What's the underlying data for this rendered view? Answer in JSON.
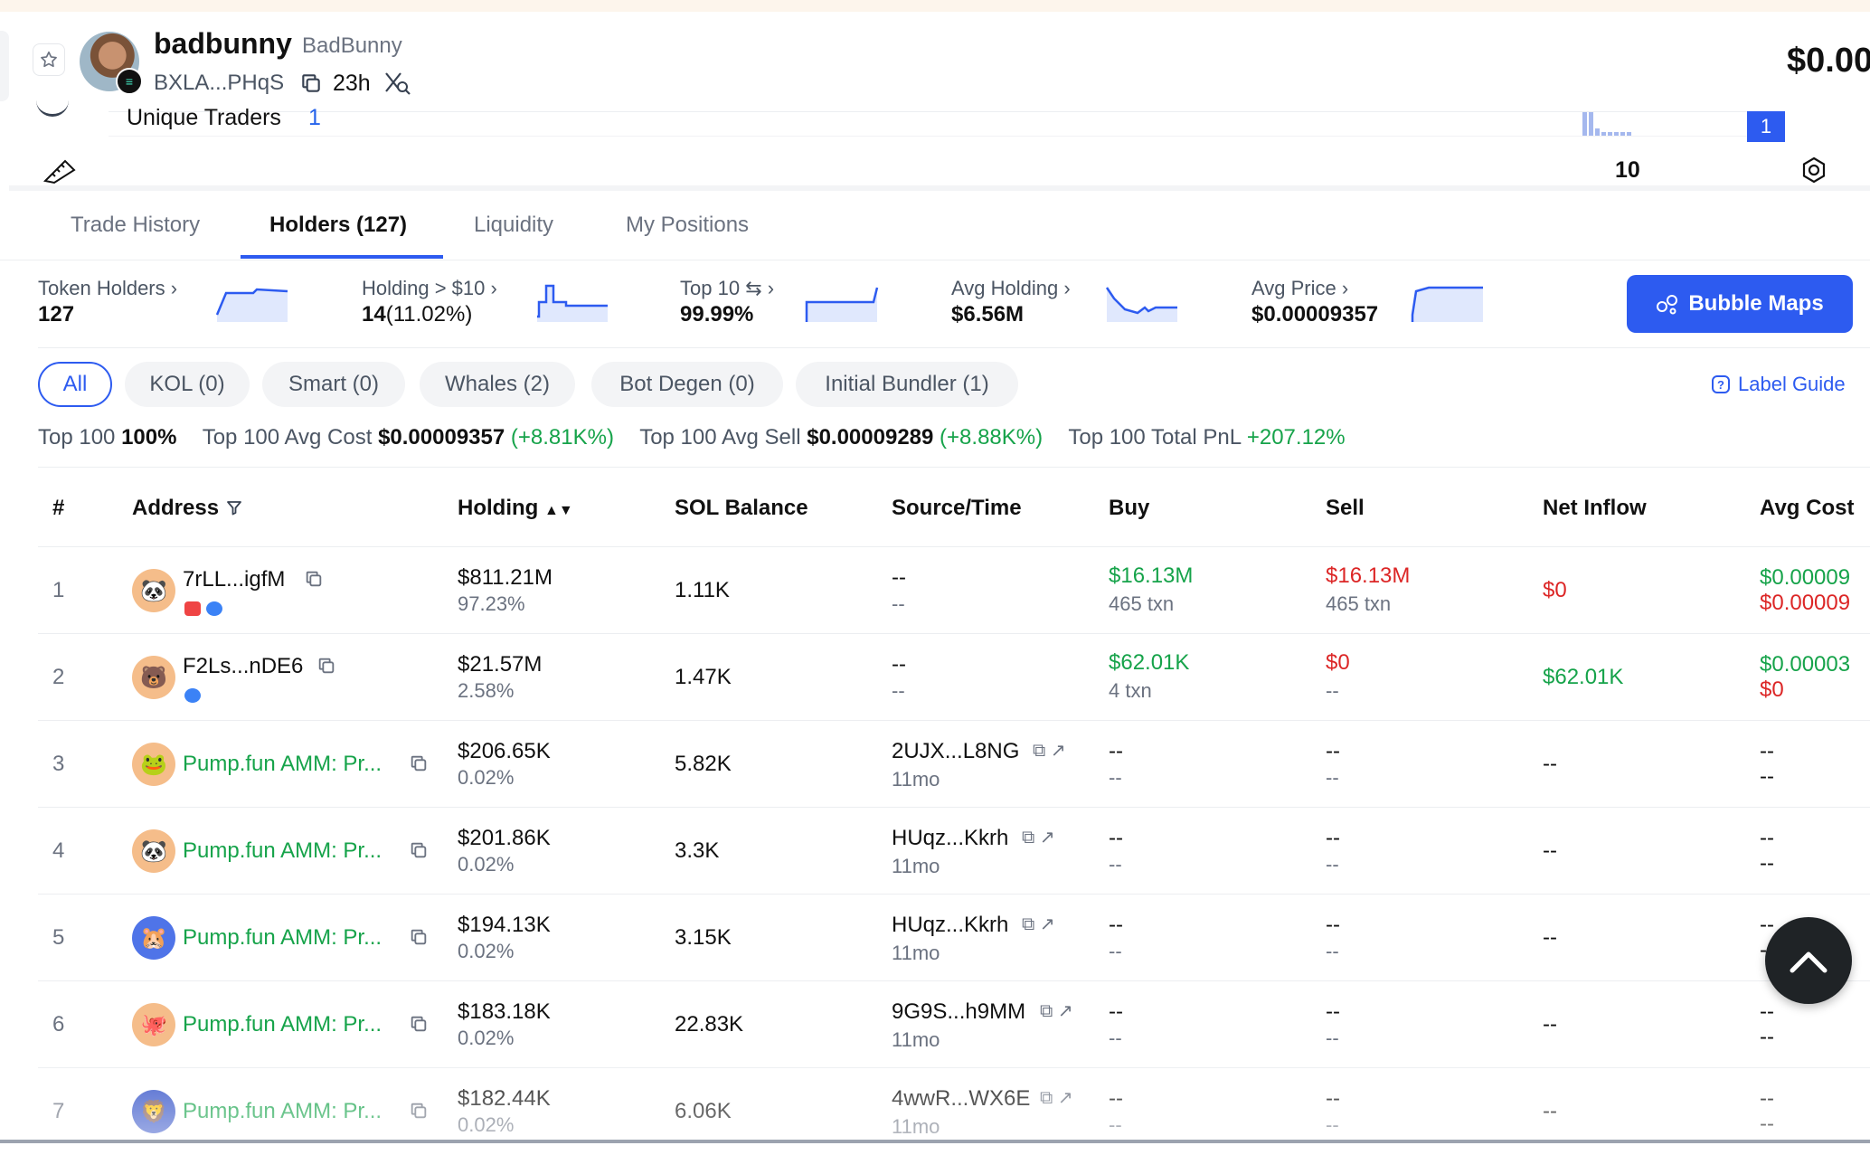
{
  "header": {
    "name": "badbunny",
    "symbol": "BadBunny",
    "address": "BXLA...PHqS",
    "age": "23h",
    "price": "$0.00"
  },
  "stats": {
    "unique_traders_label": "Unique Traders",
    "unique_traders_value": "1",
    "badge_value": "1",
    "ten_label": "10"
  },
  "tabs": [
    {
      "label": "Trade History"
    },
    {
      "label": "Holders (127)"
    },
    {
      "label": "Liquidity"
    },
    {
      "label": "My Positions"
    }
  ],
  "metrics": [
    {
      "label": "Token Holders",
      "value": "127"
    },
    {
      "label": "Holding > $10",
      "value_main": "14",
      "value_pct": "(11.02%)"
    },
    {
      "label": "Top 10",
      "value": "99.99%"
    },
    {
      "label": "Avg Holding",
      "value": "$6.56M"
    },
    {
      "label": "Avg Price",
      "value": "$0.00009357"
    }
  ],
  "bubble_maps": "Bubble Maps",
  "filters": [
    {
      "label": "All",
      "active": true
    },
    {
      "label": "KOL (0)"
    },
    {
      "label": "Smart (0)"
    },
    {
      "label": "Whales (2)"
    },
    {
      "label": "Bot Degen (0)"
    },
    {
      "label": "Initial Bundler (1)"
    }
  ],
  "label_guide": "Label Guide",
  "summary": {
    "top100_label": "Top 100",
    "top100_value": "100%",
    "avg_cost_label": "Top 100 Avg Cost",
    "avg_cost_value": "$0.00009357",
    "avg_cost_change": "(+8.81K%)",
    "avg_sell_label": "Top 100 Avg Sell",
    "avg_sell_value": "$0.00009289",
    "avg_sell_change": "(+8.88K%)",
    "pnl_label": "Top 100 Total PnL",
    "pnl_value": "+207.12%"
  },
  "columns": [
    "#",
    "Address",
    "Holding",
    "SOL Balance",
    "Source/Time",
    "Buy",
    "Sell",
    "Net Inflow",
    "Avg Cost"
  ],
  "rows": [
    {
      "rank": "1",
      "address": "7rLL...igfM",
      "holding": "$811.21M",
      "holding_pct": "97.23%",
      "sol": "1.11K",
      "source": "--",
      "source_time": "--",
      "buy": "$16.13M",
      "buy_txn": "465 txn",
      "sell": "$16.13M",
      "sell_txn": "465 txn",
      "net": "$0",
      "cost": "$0.00009",
      "cost2": "$0.00009"
    },
    {
      "rank": "2",
      "address": "F2Ls...nDE6",
      "holding": "$21.57M",
      "holding_pct": "2.58%",
      "sol": "1.47K",
      "source": "--",
      "source_time": "--",
      "buy": "$62.01K",
      "buy_txn": "4 txn",
      "sell": "$0",
      "sell_txn": "--",
      "net": "$62.01K",
      "cost": "$0.00003",
      "cost2": "$0"
    },
    {
      "rank": "3",
      "address": "Pump.fun AMM: Pr...",
      "holding": "$206.65K",
      "holding_pct": "0.02%",
      "sol": "5.82K",
      "source": "2UJX...L8NG",
      "source_time": "11mo",
      "buy": "--",
      "buy_txn": "--",
      "sell": "--",
      "sell_txn": "--",
      "net": "--",
      "cost": "--",
      "cost2": "--"
    },
    {
      "rank": "4",
      "address": "Pump.fun AMM: Pr...",
      "holding": "$201.86K",
      "holding_pct": "0.02%",
      "sol": "3.3K",
      "source": "HUqz...Kkrh",
      "source_time": "11mo",
      "buy": "--",
      "buy_txn": "--",
      "sell": "--",
      "sell_txn": "--",
      "net": "--",
      "cost": "--",
      "cost2": "--"
    },
    {
      "rank": "5",
      "address": "Pump.fun AMM: Pr...",
      "holding": "$194.13K",
      "holding_pct": "0.02%",
      "sol": "3.15K",
      "source": "HUqz...Kkrh",
      "source_time": "11mo",
      "buy": "--",
      "buy_txn": "--",
      "sell": "--",
      "sell_txn": "--",
      "net": "--",
      "cost": "--",
      "cost2": "--"
    },
    {
      "rank": "6",
      "address": "Pump.fun AMM: Pr...",
      "holding": "$183.18K",
      "holding_pct": "0.02%",
      "sol": "22.83K",
      "source": "9G9S...h9MM",
      "source_time": "11mo",
      "buy": "--",
      "buy_txn": "--",
      "sell": "--",
      "sell_txn": "--",
      "net": "--",
      "cost": "--",
      "cost2": "--"
    },
    {
      "rank": "7",
      "address": "Pump.fun AMM: Pr...",
      "holding": "$182.44K",
      "holding_pct": "0.02%",
      "sol": "6.06K",
      "source": "4wwR...WX6E",
      "source_time": "11mo",
      "buy": "--",
      "buy_txn": "--",
      "sell": "--",
      "sell_txn": "--",
      "net": "--",
      "cost": "--",
      "cost2": "--"
    }
  ],
  "colors": {
    "accent": "#2d5bf0",
    "green": "#16a34a",
    "red": "#dc2626",
    "text": "#111827",
    "muted": "#6b7280"
  }
}
